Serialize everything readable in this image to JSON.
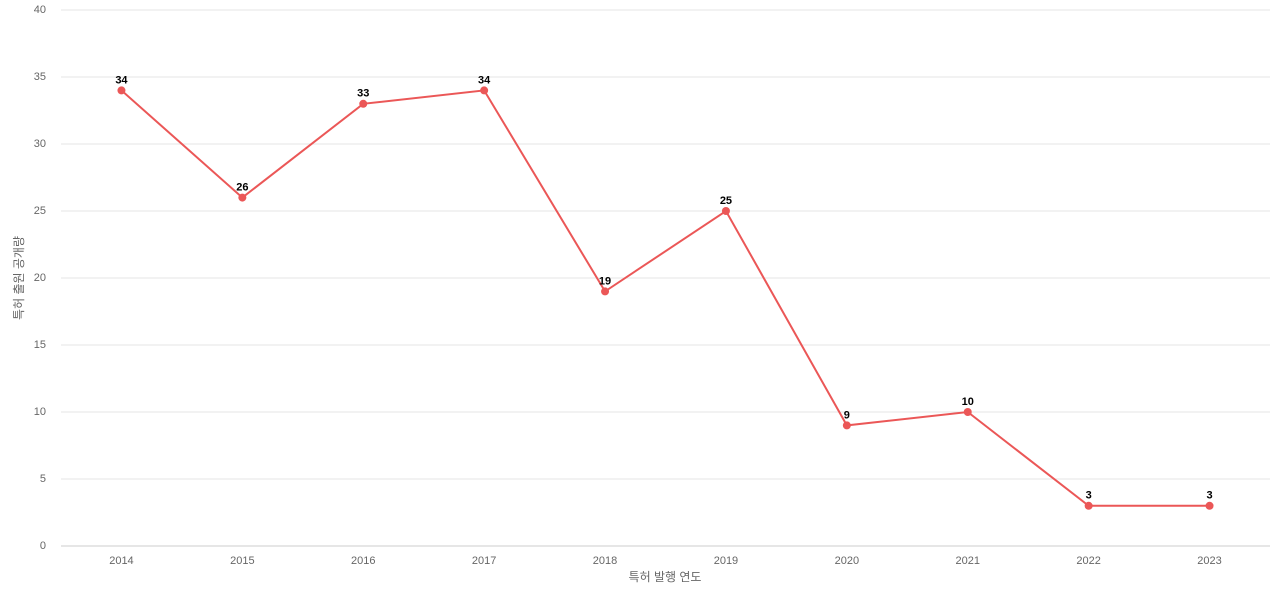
{
  "chart_data": {
    "type": "line",
    "x_label": "특허 발행 연도",
    "y_label": "특허 출원 공개량",
    "categories": [
      "2014",
      "2015",
      "2016",
      "2017",
      "2018",
      "2019",
      "2020",
      "2021",
      "2022",
      "2023"
    ],
    "values": [
      34,
      26,
      33,
      34,
      19,
      25,
      9,
      10,
      3,
      3
    ],
    "color": "#eb5757",
    "ylim": [
      0,
      40
    ],
    "yticks": [
      0,
      5,
      10,
      15,
      20,
      25,
      30,
      35,
      40
    ],
    "grid": true
  }
}
